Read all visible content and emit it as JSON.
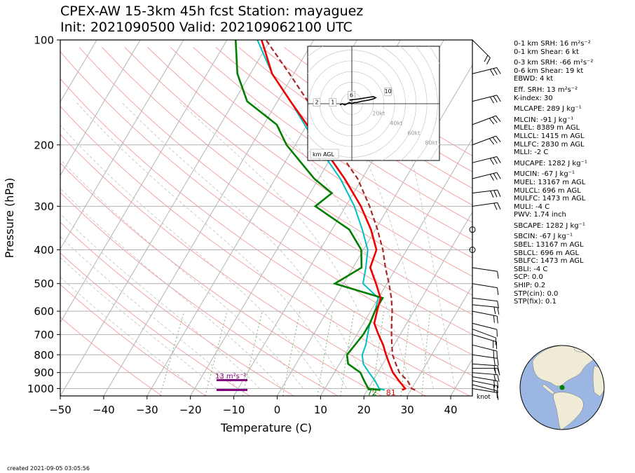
{
  "title": {
    "line1": "CPEX-AW 15-3km  45h fcst  Station: mayaguez",
    "line2": "Init: 2021090500  Valid: 202109062100 UTC"
  },
  "created": "created 2021-09-05 03:05:56",
  "stats": [
    "0-1 km SRH: 16 m²s⁻²",
    "0-1 km Shear: 6 kt",
    "0-3 km SRH: -66 m²s⁻²",
    "0-6 km Shear: 19 kt",
    "EBWD: 4 kt",
    "Eff. SRH: 13 m²s⁻²",
    "K-index: 30",
    "MLCAPE: 289 J kg⁻¹",
    "MLCIN: -91 J kg⁻¹",
    "MLEL: 8389 m AGL",
    "MLLCL: 1415 m AGL",
    "MLLFC: 2830 m AGL",
    "MLLI: -2 C",
    "MUCAPE: 1282 J kg⁻¹",
    "MUCIN: -67 J kg⁻¹",
    "MUEL: 13167 m AGL",
    "MULCL: 696 m AGL",
    "MULFC: 1473 m AGL",
    "MULI: -4 C",
    "PWV: 1.74 inch",
    "SBCAPE: 1282 J kg⁻¹",
    "SBCIN: -67 J kg⁻¹",
    "SBEL: 13167 m AGL",
    "SBLCL: 696 m AGL",
    "SBLFC: 1473 m AGL",
    "SBLI: -4 C",
    "SCP: 0.0",
    "SHIP: 0.2",
    "STP(cin): 0.0",
    "STP(fix): 0.1"
  ],
  "colors": {
    "temperature": "#ee0000",
    "dewpoint": "#007f00",
    "wetbulb": "#00bfbf",
    "parcel": "#a52a2a",
    "srh_bar": "#800080",
    "dry_adiabat": "#f4a3a3",
    "moist_adiabat": "#c0c0c0",
    "mixing_ratio": "#7fbf7f",
    "globe_ocean": "#9bb6e2",
    "globe_land": "#efebd7"
  },
  "chart_data": {
    "type": "skew-t",
    "xlabel": "Temperature (C)",
    "ylabel": "Pressure (hPa)",
    "xlim": [
      -50,
      45
    ],
    "ylim": [
      1050,
      100
    ],
    "x_ticks": [
      "−50",
      "−40",
      "−30",
      "−20",
      "−10",
      "0",
      "10",
      "20",
      "30",
      "40"
    ],
    "y_ticks": [
      "100",
      "200",
      "300",
      "400",
      "500",
      "600",
      "700",
      "800",
      "900",
      "1000"
    ],
    "surface_temp_label": "81",
    "surface_dewpoint_label": "72",
    "srh_label": "13 m²s⁻²",
    "wind_unit": "knot",
    "temperature": [
      [
        1010,
        28
      ],
      [
        1000,
        28.5
      ],
      [
        950,
        26
      ],
      [
        900,
        23.5
      ],
      [
        850,
        21.5
      ],
      [
        800,
        19.5
      ],
      [
        750,
        17.5
      ],
      [
        700,
        15
      ],
      [
        650,
        12.5
      ],
      [
        600,
        11.5
      ],
      [
        550,
        10.5
      ],
      [
        500,
        7.5
      ],
      [
        450,
        4
      ],
      [
        400,
        3
      ],
      [
        350,
        -1
      ],
      [
        300,
        -6.5
      ],
      [
        250,
        -14
      ],
      [
        200,
        -24
      ],
      [
        150,
        -37
      ],
      [
        125,
        -45
      ],
      [
        100,
        -52
      ]
    ],
    "dewpoint": [
      [
        1010,
        23
      ],
      [
        1000,
        20
      ],
      [
        950,
        18
      ],
      [
        900,
        16
      ],
      [
        850,
        12
      ],
      [
        800,
        10.5
      ],
      [
        750,
        11
      ],
      [
        700,
        11.5
      ],
      [
        650,
        11.5
      ],
      [
        600,
        11
      ],
      [
        550,
        11
      ],
      [
        500,
        -2
      ],
      [
        450,
        2
      ],
      [
        400,
        -0.5
      ],
      [
        350,
        -6
      ],
      [
        300,
        -17
      ],
      [
        275,
        -15
      ],
      [
        250,
        -21
      ],
      [
        200,
        -32
      ],
      [
        175,
        -37
      ],
      [
        150,
        -47
      ],
      [
        125,
        -53
      ],
      [
        100,
        -58
      ]
    ],
    "wetbulb": [
      [
        1010,
        24
      ],
      [
        1000,
        22.5
      ],
      [
        950,
        20.5
      ],
      [
        900,
        18
      ],
      [
        850,
        15.5
      ],
      [
        800,
        14
      ],
      [
        750,
        13.5
      ],
      [
        700,
        12.5
      ],
      [
        650,
        11.5
      ],
      [
        600,
        11
      ],
      [
        550,
        10
      ],
      [
        500,
        4.5
      ],
      [
        450,
        3
      ],
      [
        400,
        1
      ],
      [
        350,
        -3
      ],
      [
        300,
        -8
      ],
      [
        250,
        -15
      ],
      [
        200,
        -25
      ],
      [
        150,
        -37
      ],
      [
        125,
        -45
      ],
      [
        100,
        -53
      ]
    ],
    "parcel": [
      [
        1010,
        31
      ],
      [
        1000,
        30
      ],
      [
        950,
        28
      ],
      [
        900,
        25
      ],
      [
        850,
        23
      ],
      [
        800,
        21
      ],
      [
        750,
        19.5
      ],
      [
        700,
        18
      ],
      [
        650,
        16.5
      ],
      [
        600,
        15
      ],
      [
        550,
        13
      ],
      [
        500,
        10.5
      ],
      [
        450,
        7.5
      ],
      [
        400,
        4.5
      ],
      [
        350,
        0.5
      ],
      [
        300,
        -4.5
      ],
      [
        250,
        -11
      ],
      [
        200,
        -21
      ],
      [
        150,
        -33
      ],
      [
        125,
        -41
      ],
      [
        100,
        -51
      ]
    ],
    "wind_barbs": [
      {
        "p": 1000,
        "u": -3,
        "v": 0.5
      },
      {
        "p": 975,
        "u": -4,
        "v": 1
      },
      {
        "p": 950,
        "u": -5,
        "v": 1
      },
      {
        "p": 925,
        "u": -6,
        "v": 1
      },
      {
        "p": 900,
        "u": -6,
        "v": 0.5
      },
      {
        "p": 875,
        "u": -6,
        "v": 0
      },
      {
        "p": 850,
        "u": -7,
        "v": 0.5
      },
      {
        "p": 800,
        "u": -7,
        "v": 1
      },
      {
        "p": 750,
        "u": -6,
        "v": 1.5
      },
      {
        "p": 700,
        "u": -5,
        "v": 1.5
      },
      {
        "p": 675,
        "u": -4,
        "v": 1.5
      },
      {
        "p": 650,
        "u": -4,
        "v": 1
      },
      {
        "p": 600,
        "u": -5,
        "v": 1
      },
      {
        "p": 575,
        "u": -5,
        "v": 0.5
      },
      {
        "p": 550,
        "u": -4,
        "v": 0.5
      },
      {
        "p": 500,
        "u": -3,
        "v": 0.5
      },
      {
        "p": 450,
        "u": -2,
        "v": 0.3
      },
      {
        "p": 400,
        "u": 0,
        "v": 0
      },
      {
        "p": 350,
        "u": 0,
        "v": 0
      },
      {
        "p": 300,
        "u": -7,
        "v": -1
      },
      {
        "p": 275,
        "u": -8,
        "v": -1
      },
      {
        "p": 250,
        "u": -8,
        "v": -2
      },
      {
        "p": 225,
        "u": -8,
        "v": -2
      },
      {
        "p": 200,
        "u": -8,
        "v": -3
      },
      {
        "p": 175,
        "u": -8,
        "v": -3
      },
      {
        "p": 150,
        "u": -8,
        "v": -2
      },
      {
        "p": 125,
        "u": -8,
        "v": -2
      },
      {
        "p": 100,
        "u": -4,
        "v": 4
      }
    ],
    "hodograph": {
      "label": "km AGL",
      "ring_labels": [
        "20kt",
        "40kt",
        "60kt",
        "80kt"
      ],
      "height_labels": [
        "2",
        "1",
        "6",
        "10"
      ],
      "points": [
        [
          -10,
          -1
        ],
        [
          -8,
          0
        ],
        [
          -6,
          -1
        ],
        [
          -4,
          0
        ],
        [
          -2,
          1
        ],
        [
          0,
          0
        ],
        [
          2,
          1
        ],
        [
          4,
          1
        ],
        [
          8,
          2
        ],
        [
          14,
          3
        ],
        [
          18,
          4
        ],
        [
          20,
          5
        ],
        [
          18,
          6
        ],
        [
          12,
          5
        ],
        [
          6,
          4
        ],
        [
          -2,
          3
        ]
      ]
    },
    "inset_map": {
      "marker": "station",
      "marker_color": "#008000"
    }
  }
}
